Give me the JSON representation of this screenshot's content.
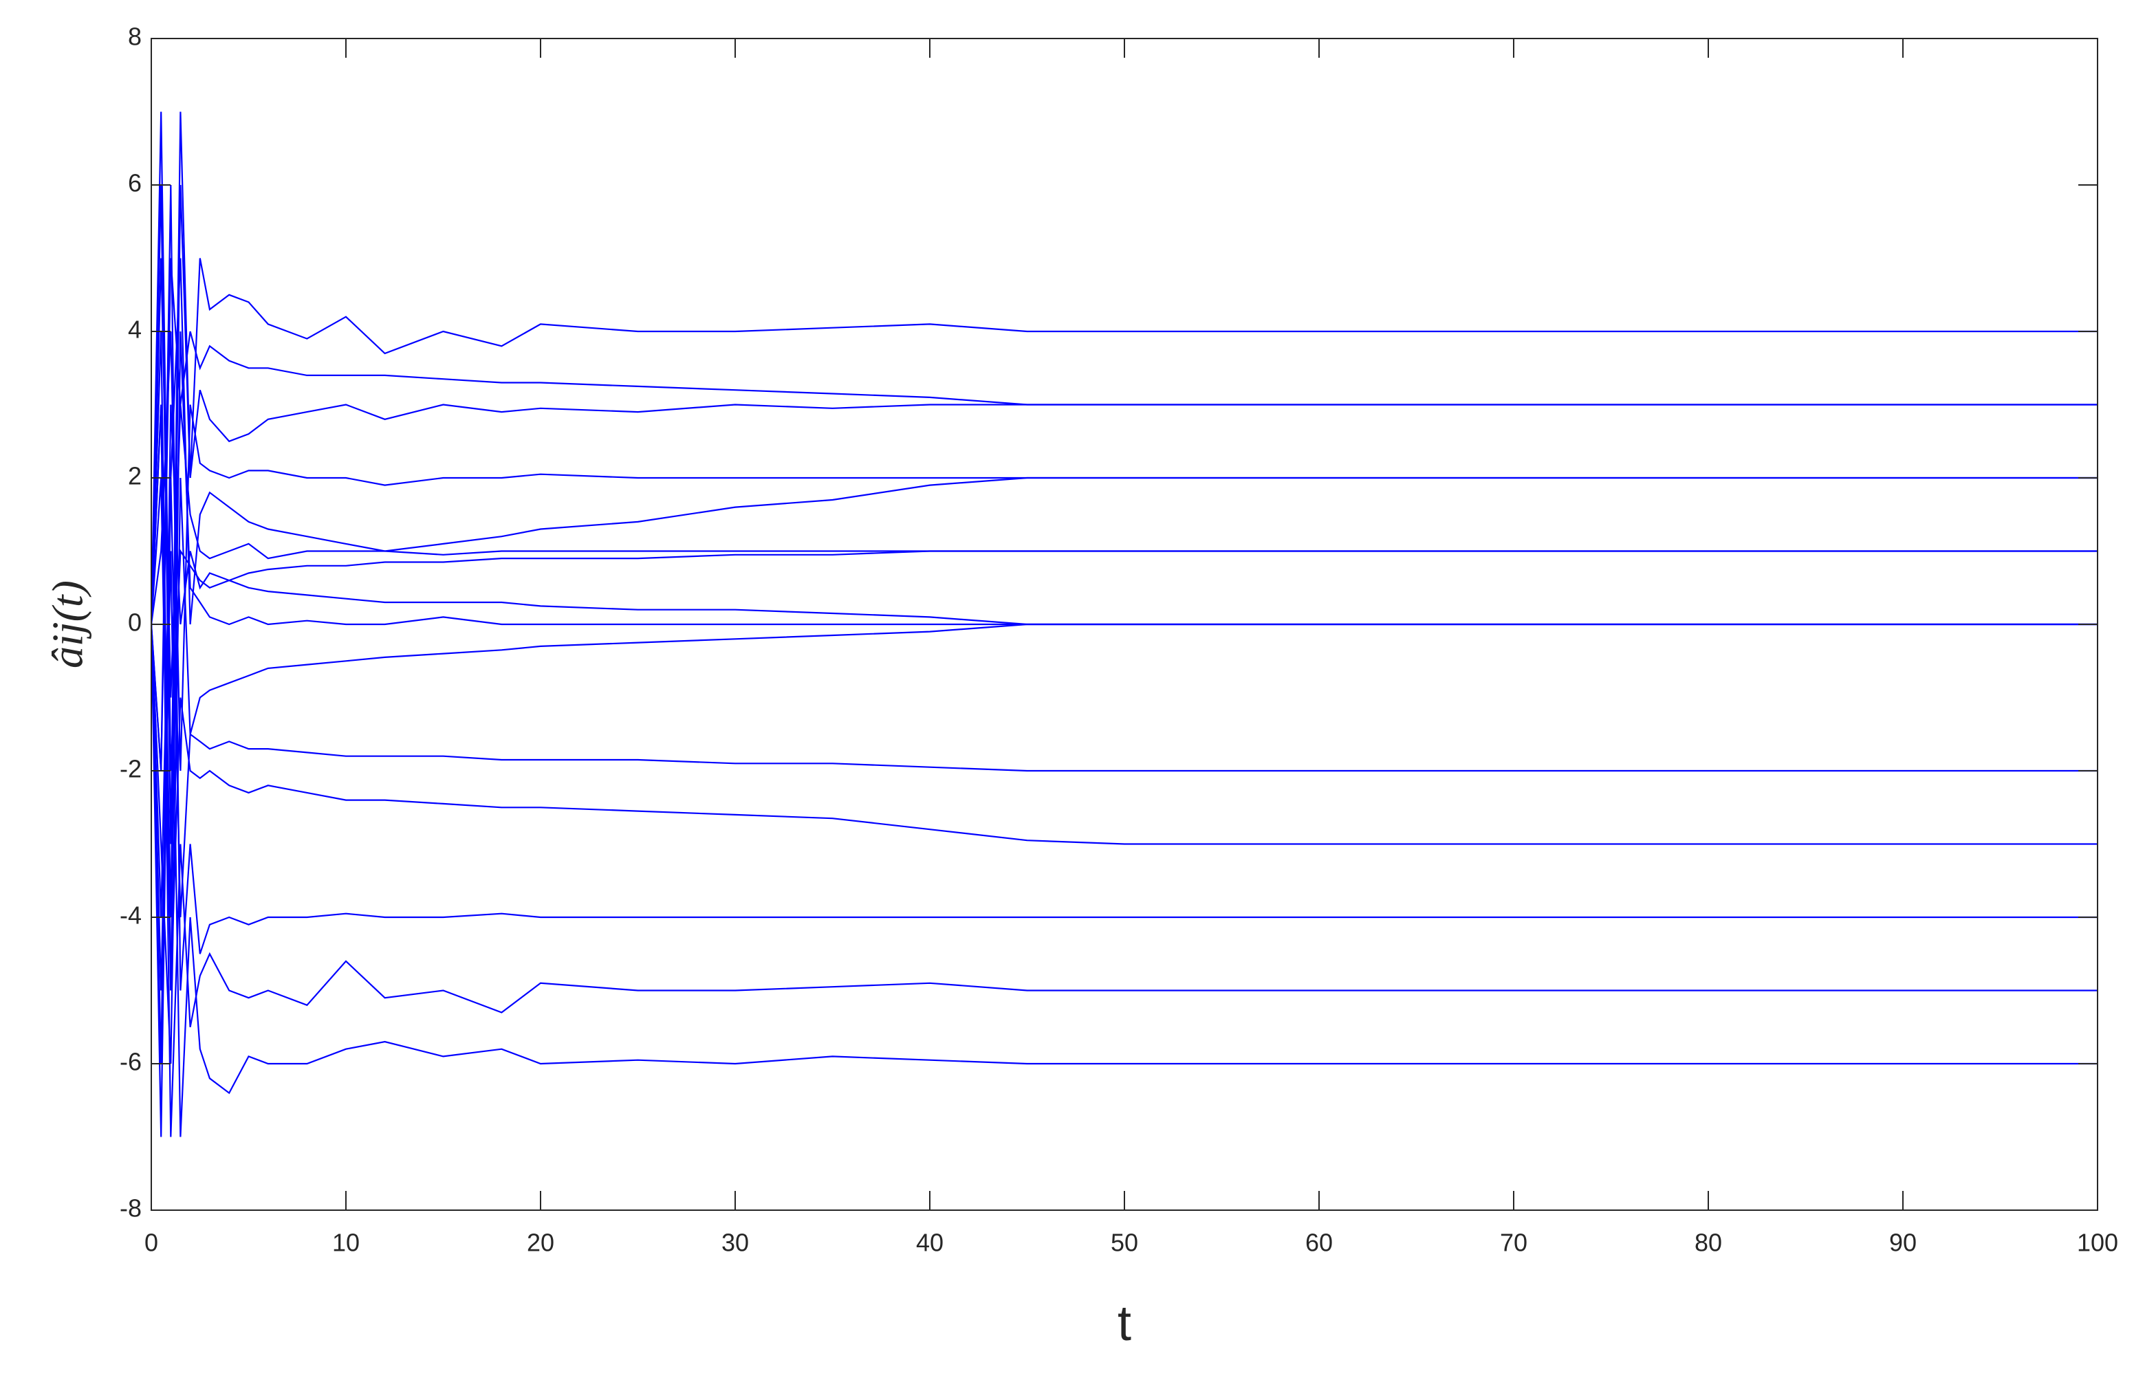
{
  "chart_data": {
    "type": "line",
    "xlabel": "t",
    "ylabel": "âij(t)",
    "xlim": [
      0,
      100
    ],
    "ylim": [
      -8,
      8
    ],
    "xticks": [
      0,
      10,
      20,
      30,
      40,
      50,
      60,
      70,
      80,
      90,
      100
    ],
    "yticks": [
      -8,
      -6,
      -4,
      -2,
      0,
      2,
      4,
      6,
      8
    ],
    "grid": false,
    "x": [
      0,
      0.5,
      1,
      1.5,
      2,
      2.5,
      3,
      4,
      5,
      6,
      8,
      10,
      12,
      15,
      18,
      20,
      25,
      30,
      35,
      40,
      45,
      50,
      60,
      80,
      100
    ],
    "series": [
      {
        "color": "#0000ff",
        "values": [
          0,
          6,
          -3,
          7,
          2,
          5,
          4.3,
          4.5,
          4.4,
          4.1,
          3.9,
          4.2,
          3.7,
          4.0,
          3.8,
          4.1,
          4.0,
          4.0,
          4.05,
          4.1,
          4.0,
          4.0,
          4.0,
          4.0,
          4.0
        ]
      },
      {
        "color": "#0000ff",
        "values": [
          0,
          -2,
          5,
          3,
          4,
          3.5,
          3.8,
          3.6,
          3.5,
          3.5,
          3.4,
          3.4,
          3.4,
          3.35,
          3.3,
          3.3,
          3.25,
          3.2,
          3.15,
          3.1,
          3.0,
          3.0,
          3.0,
          3.0,
          3.0
        ]
      },
      {
        "color": "#0000ff",
        "values": [
          0,
          3,
          -4,
          6,
          2,
          3.2,
          2.8,
          2.5,
          2.6,
          2.8,
          2.9,
          3.0,
          2.8,
          3.0,
          2.9,
          2.95,
          2.9,
          3.0,
          2.95,
          3.0,
          3.0,
          3.0,
          3.0,
          3.0,
          3.0
        ]
      },
      {
        "color": "#0000ff",
        "values": [
          0,
          1,
          4,
          -2,
          3,
          2.2,
          2.1,
          2.0,
          2.1,
          2.1,
          2.0,
          2.0,
          1.9,
          2.0,
          2.0,
          2.05,
          2.0,
          2.0,
          2.0,
          2.0,
          2.0,
          2.0,
          2.0,
          2.0,
          2.0
        ]
      },
      {
        "color": "#0000ff",
        "values": [
          0,
          -4,
          2,
          5,
          0,
          1.5,
          1.8,
          1.6,
          1.4,
          1.3,
          1.2,
          1.1,
          1.0,
          1.1,
          1.2,
          1.3,
          1.4,
          1.6,
          1.7,
          1.9,
          2.0,
          2.0,
          2.0,
          2.0,
          2.0
        ]
      },
      {
        "color": "#0000ff",
        "values": [
          0,
          5,
          -1,
          3,
          1.5,
          1.0,
          0.9,
          1.0,
          1.1,
          0.9,
          1.0,
          1.0,
          1.0,
          0.95,
          1.0,
          1.0,
          1.0,
          1.0,
          1.0,
          1.0,
          1.0,
          1.0,
          1.0,
          1.0,
          1.0
        ]
      },
      {
        "color": "#0000ff",
        "values": [
          0,
          -6,
          3,
          0,
          1,
          0.5,
          0.7,
          0.6,
          0.7,
          0.75,
          0.8,
          0.8,
          0.85,
          0.85,
          0.9,
          0.9,
          0.9,
          0.95,
          0.95,
          1.0,
          1.0,
          1.0,
          1.0,
          1.0,
          1.0
        ]
      },
      {
        "color": "#0000ff",
        "values": [
          0,
          2,
          -5,
          4,
          0.5,
          0.3,
          0.1,
          0.0,
          0.1,
          0.0,
          0.05,
          0.0,
          0.0,
          0.1,
          0.0,
          0.0,
          0.0,
          0.0,
          0.0,
          0.0,
          0.0,
          0.0,
          0.0,
          0.0,
          0.0
        ]
      },
      {
        "color": "#0000ff",
        "values": [
          0,
          7,
          -2,
          1,
          0.8,
          0.6,
          0.5,
          0.6,
          0.5,
          0.45,
          0.4,
          0.35,
          0.3,
          0.3,
          0.3,
          0.25,
          0.2,
          0.2,
          0.15,
          0.1,
          0.0,
          0.0,
          0.0,
          0.0,
          0.0
        ]
      },
      {
        "color": "#0000ff",
        "values": [
          0,
          -3,
          -6,
          2,
          -1.5,
          -1.0,
          -0.9,
          -0.8,
          -0.7,
          -0.6,
          -0.55,
          -0.5,
          -0.45,
          -0.4,
          -0.35,
          -0.3,
          -0.25,
          -0.2,
          -0.15,
          -0.1,
          0.0,
          0.0,
          0.0,
          0.0,
          0.0
        ]
      },
      {
        "color": "#0000ff",
        "values": [
          0,
          -7,
          2,
          -4,
          -1.5,
          -1.6,
          -1.7,
          -1.6,
          -1.7,
          -1.7,
          -1.75,
          -1.8,
          -1.8,
          -1.8,
          -1.85,
          -1.85,
          -1.85,
          -1.9,
          -1.9,
          -1.95,
          -2.0,
          -2.0,
          -2.0,
          -2.0,
          -2.0
        ]
      },
      {
        "color": "#0000ff",
        "values": [
          0,
          4,
          -5,
          -1,
          -2.0,
          -2.1,
          -2.0,
          -2.2,
          -2.3,
          -2.2,
          -2.3,
          -2.4,
          -2.4,
          -2.45,
          -2.5,
          -2.5,
          -2.55,
          -2.6,
          -2.65,
          -2.8,
          -2.95,
          -3.0,
          -3.0,
          -3.0,
          -3.0
        ]
      },
      {
        "color": "#0000ff",
        "values": [
          0,
          -2,
          6,
          -5,
          -3,
          -4.5,
          -4.1,
          -4.0,
          -4.1,
          -4.0,
          -4.0,
          -3.95,
          -4.0,
          -4.0,
          -3.95,
          -4.0,
          -4.0,
          -4.0,
          -4.0,
          -4.0,
          -4.0,
          -4.0,
          -4.0,
          -4.0,
          -4.0
        ]
      },
      {
        "color": "#0000ff",
        "values": [
          0,
          3,
          -7,
          -3,
          -5.5,
          -4.8,
          -4.5,
          -5.0,
          -5.1,
          -5.0,
          -5.2,
          -4.6,
          -5.1,
          -5.0,
          -5.3,
          -4.9,
          -5.0,
          -5.0,
          -4.95,
          -4.9,
          -5.0,
          -5.0,
          -5.0,
          -5.0,
          -5.0
        ]
      },
      {
        "color": "#0000ff",
        "values": [
          0,
          -5,
          1,
          -7,
          -4,
          -5.8,
          -6.2,
          -6.4,
          -5.9,
          -6.0,
          -6.0,
          -5.8,
          -5.7,
          -5.9,
          -5.8,
          -6.0,
          -5.95,
          -6.0,
          -5.9,
          -5.95,
          -6.0,
          -6.0,
          -6.0,
          -6.0,
          -6.0
        ]
      }
    ]
  }
}
